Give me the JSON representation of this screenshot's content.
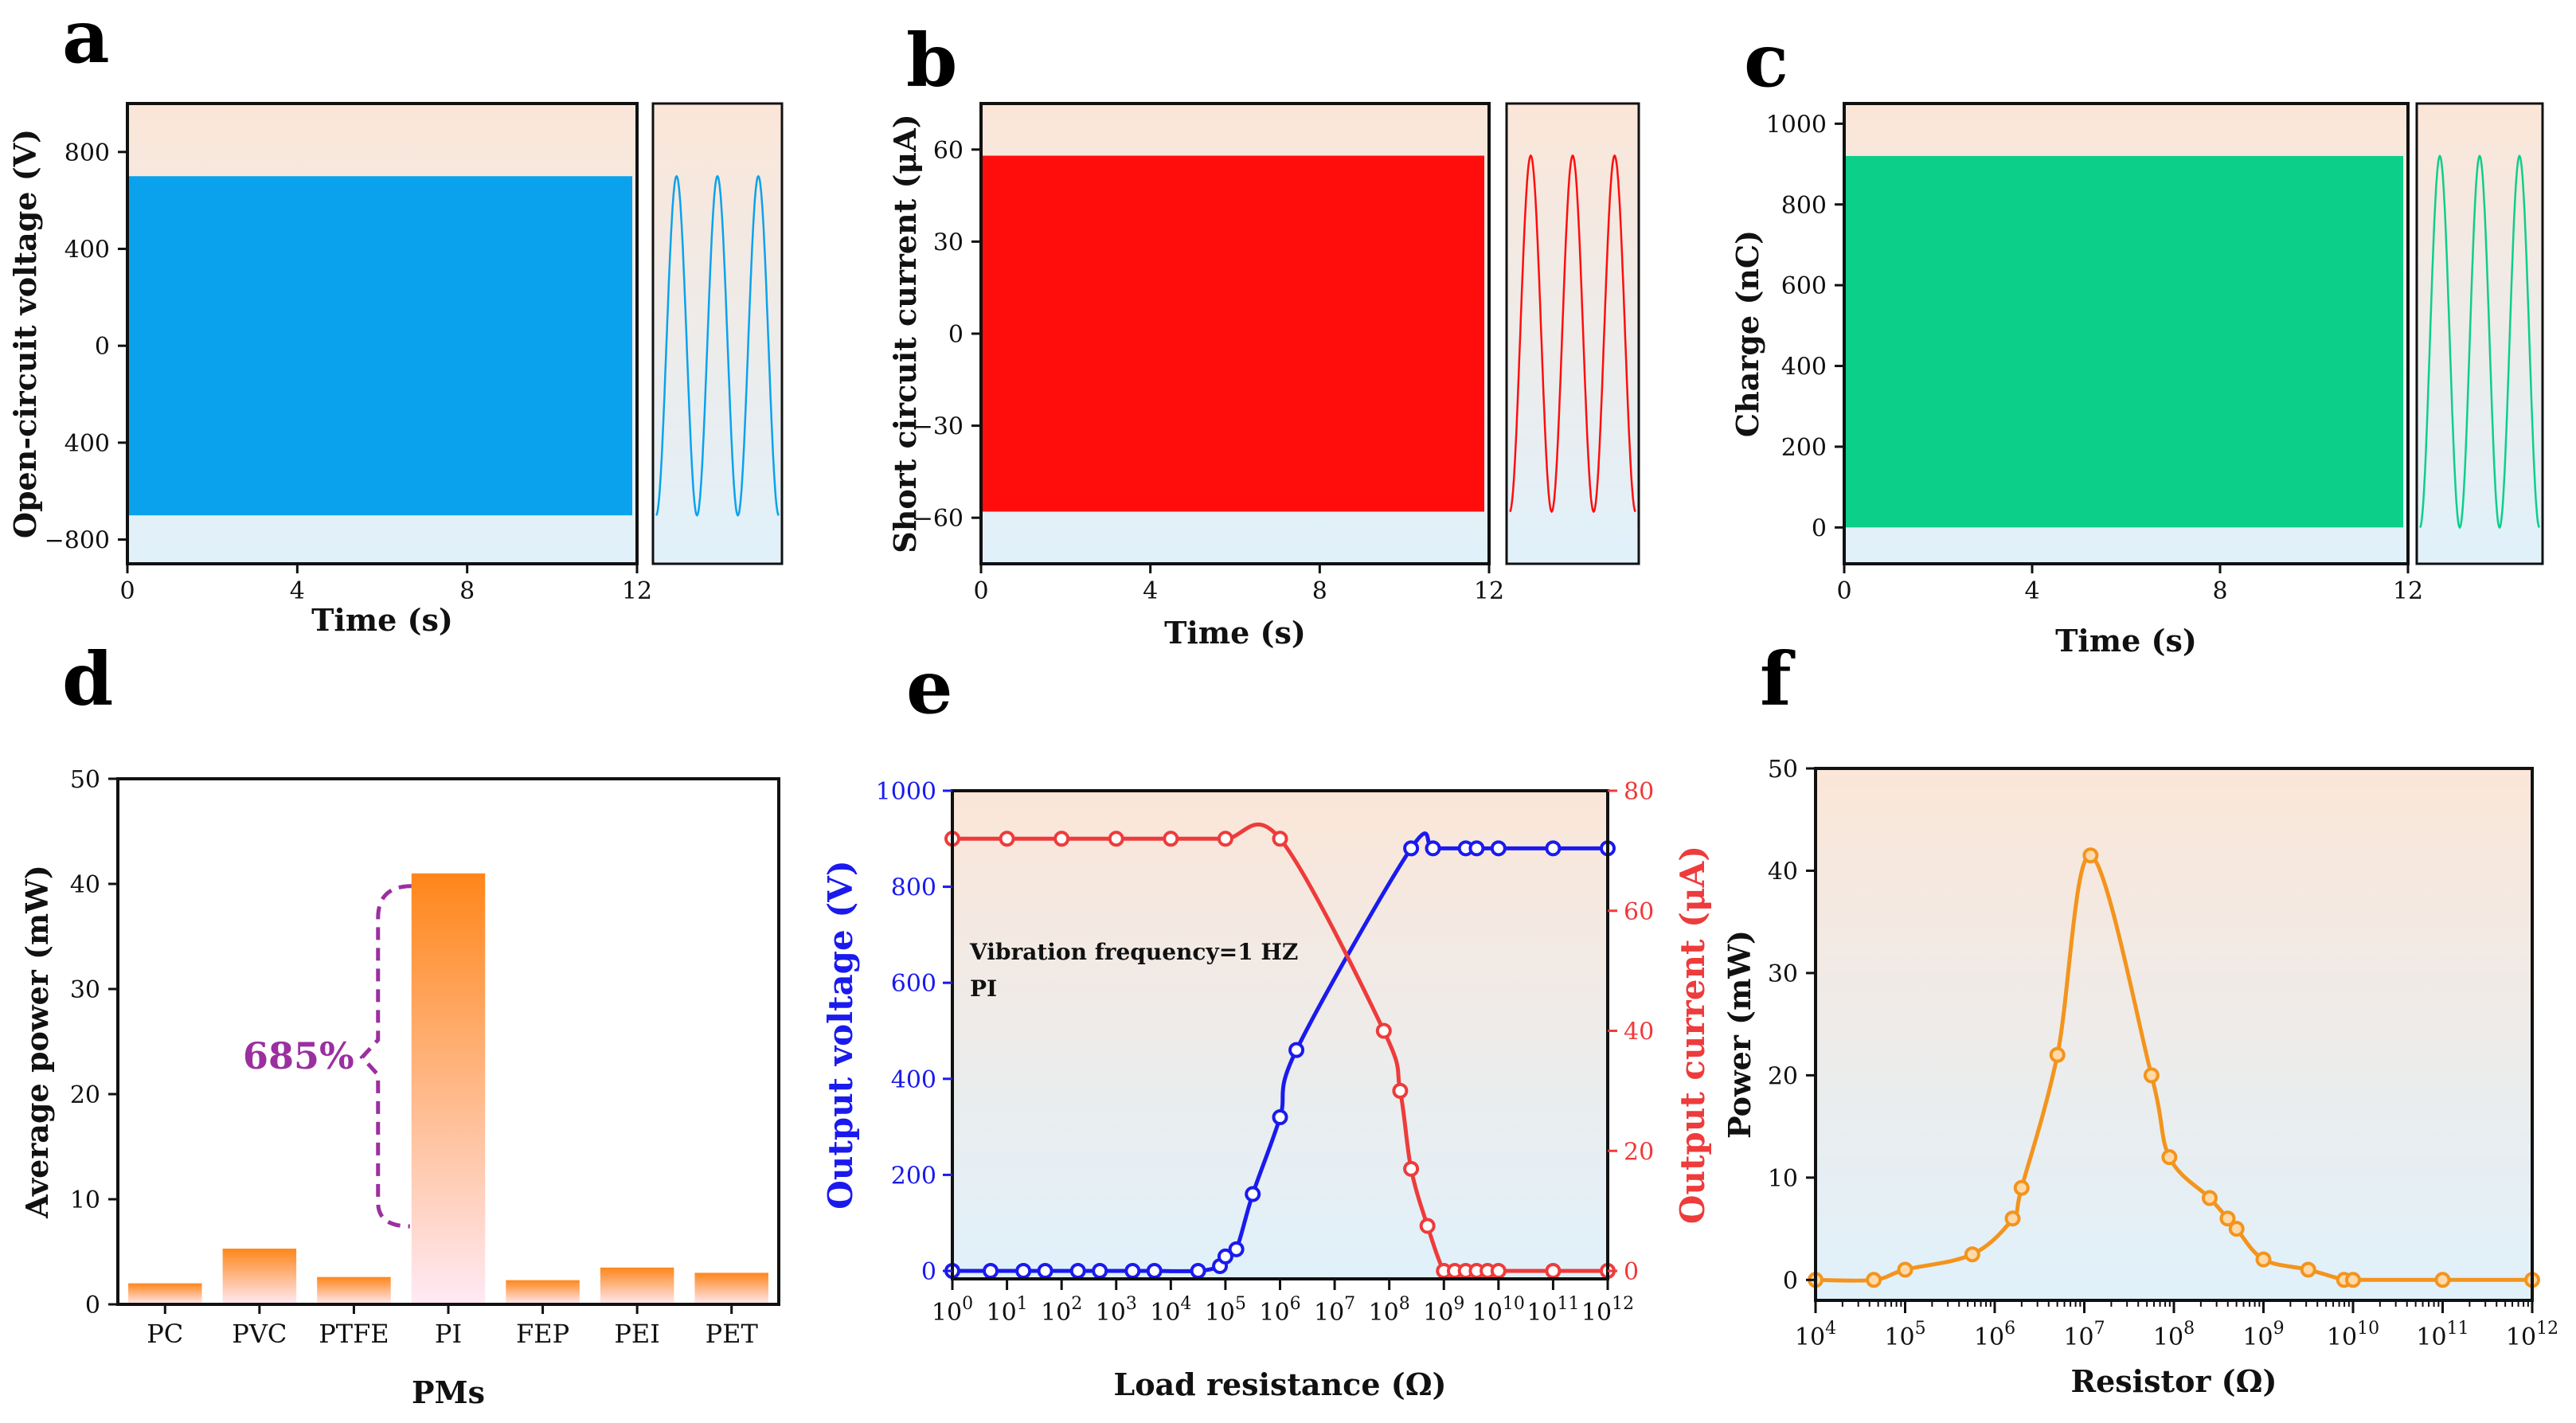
{
  "figure": {
    "panels": [
      "a",
      "b",
      "c",
      "d",
      "e",
      "f"
    ]
  },
  "colors": {
    "voltage_blue": "#0aa2ec",
    "current_red": "#ff0d0d",
    "charge_green": "#0ccf8a",
    "bar_orange": "#ff8a1e",
    "bar_pale": "#ffe9f4",
    "line_blue": "#1a1aee",
    "line_red": "#ee3b3b",
    "power_orange": "#f3941d",
    "annot_purple": "#9b2fa0",
    "bg_top": "#fbe8dc",
    "bg_bottom": "#e2f2fb"
  },
  "chart_data": [
    {
      "id": "a",
      "type": "line",
      "ylabel": "Open-circuit voltage (V)",
      "xlabel": "Time (s)",
      "xlim": [
        0,
        12
      ],
      "ylim": [
        -900,
        1000
      ],
      "x_ticks": [
        "0",
        "4",
        "8",
        "12"
      ],
      "y_ticks": [
        {
          "v": 800,
          "label": "800"
        },
        {
          "v": 400,
          "label": "400"
        },
        {
          "v": 0,
          "label": "0"
        },
        {
          "v": -400,
          "label": "400"
        },
        {
          "v": -800,
          "label": "−800"
        }
      ],
      "amplitude": 700,
      "offset": 0,
      "zoom_cycles": 3
    },
    {
      "id": "b",
      "type": "line",
      "ylabel": "Short circuit current (μA)",
      "xlabel": "Time (s)",
      "xlim": [
        0,
        12
      ],
      "ylim": [
        -75,
        75
      ],
      "x_ticks": [
        "0",
        "4",
        "8",
        "12"
      ],
      "y_ticks": [
        {
          "v": 60,
          "label": "60"
        },
        {
          "v": 30,
          "label": "30"
        },
        {
          "v": 0,
          "label": "0"
        },
        {
          "v": -30,
          "label": "−30"
        },
        {
          "v": -60,
          "label": "−60"
        }
      ],
      "amplitude": 58,
      "offset": 0,
      "zoom_cycles": 3
    },
    {
      "id": "c",
      "type": "line",
      "ylabel": "Charge (nC)",
      "xlabel": "Time (s)",
      "xlim": [
        0,
        12
      ],
      "ylim": [
        -90,
        1050
      ],
      "x_ticks": [
        "0",
        "4",
        "8",
        "12"
      ],
      "y_ticks": [
        {
          "v": 1000,
          "label": "1000"
        },
        {
          "v": 800,
          "label": "800"
        },
        {
          "v": 600,
          "label": "600"
        },
        {
          "v": 400,
          "label": "400"
        },
        {
          "v": 200,
          "label": "200"
        },
        {
          "v": 0,
          "label": "0"
        }
      ],
      "amplitude": 460,
      "offset": 460,
      "zoom_cycles": 3
    },
    {
      "id": "d",
      "type": "bar",
      "xlabel": "PMs",
      "ylabel": "Average power (mW)",
      "categories": [
        "PC",
        "PVC",
        "PTFE",
        "PI",
        "FEP",
        "PEI",
        "PET"
      ],
      "values": [
        2.0,
        5.3,
        2.6,
        41.0,
        2.3,
        3.5,
        3.0
      ],
      "ylim": [
        0,
        50
      ],
      "y_ticks": [
        "0",
        "10",
        "20",
        "30",
        "40",
        "50"
      ],
      "annotation": "685%"
    },
    {
      "id": "e",
      "type": "line",
      "xlabel": "Load resistance (Ω)",
      "ylabel_left": "Output voltage (V)",
      "ylabel_right": "Output current (μA)",
      "xlim_log10": [
        0,
        12
      ],
      "ylim_left": [
        0,
        1000
      ],
      "ylim_right": [
        0,
        80
      ],
      "y_ticks_left": [
        "0",
        "200",
        "400",
        "600",
        "800",
        "1000"
      ],
      "y_ticks_right": [
        "0",
        "20",
        "40",
        "60",
        "80"
      ],
      "annotations": [
        "Vibration frequency=1 HZ",
        "PI"
      ],
      "series": [
        {
          "name": "Output voltage",
          "axis": "left",
          "x_log10": [
            0,
            0.7,
            1.3,
            1.7,
            2.3,
            2.7,
            3.3,
            3.7,
            4.5,
            4.9,
            5.0,
            5.2,
            5.5,
            6.0,
            6.3,
            8.4,
            8.8,
            9.4,
            9.6,
            10.0,
            11.0,
            12.0
          ],
          "values": [
            0,
            0,
            0,
            0,
            0,
            0,
            0,
            0,
            0,
            10,
            30,
            45,
            160,
            320,
            460,
            880,
            880,
            880,
            880,
            880,
            880,
            880
          ]
        },
        {
          "name": "Output current",
          "axis": "right",
          "x_log10": [
            0,
            1.0,
            2.0,
            3.0,
            4.0,
            5.0,
            6.0,
            7.9,
            8.2,
            8.4,
            8.7,
            9.0,
            9.2,
            9.4,
            9.6,
            9.8,
            10.0,
            11.0,
            12.0
          ],
          "values": [
            72,
            72,
            72,
            72,
            72,
            72,
            72,
            40,
            30,
            17,
            7.5,
            0,
            0,
            0,
            0,
            0,
            0,
            0,
            0
          ]
        }
      ]
    },
    {
      "id": "f",
      "type": "line",
      "xlabel": "Resistor (Ω)",
      "ylabel": "Power (mW)",
      "xlim_log10": [
        4,
        12
      ],
      "ylim": [
        -2,
        50
      ],
      "y_ticks": [
        "0",
        "10",
        "20",
        "30",
        "40",
        "50"
      ],
      "series": [
        {
          "name": "Power",
          "x_log10": [
            4.0,
            4.65,
            5.0,
            5.75,
            6.2,
            6.3,
            6.7,
            7.07,
            7.75,
            7.95,
            8.4,
            8.6,
            8.7,
            9.0,
            9.5,
            9.9,
            10.0,
            11.0,
            12.0
          ],
          "values": [
            0.0,
            0.0,
            1.0,
            2.5,
            6.0,
            9.0,
            22.0,
            41.5,
            20.0,
            12.0,
            8.0,
            6.0,
            5.0,
            2.0,
            1.0,
            0.0,
            0.0,
            0.0,
            0.0
          ]
        }
      ]
    }
  ]
}
